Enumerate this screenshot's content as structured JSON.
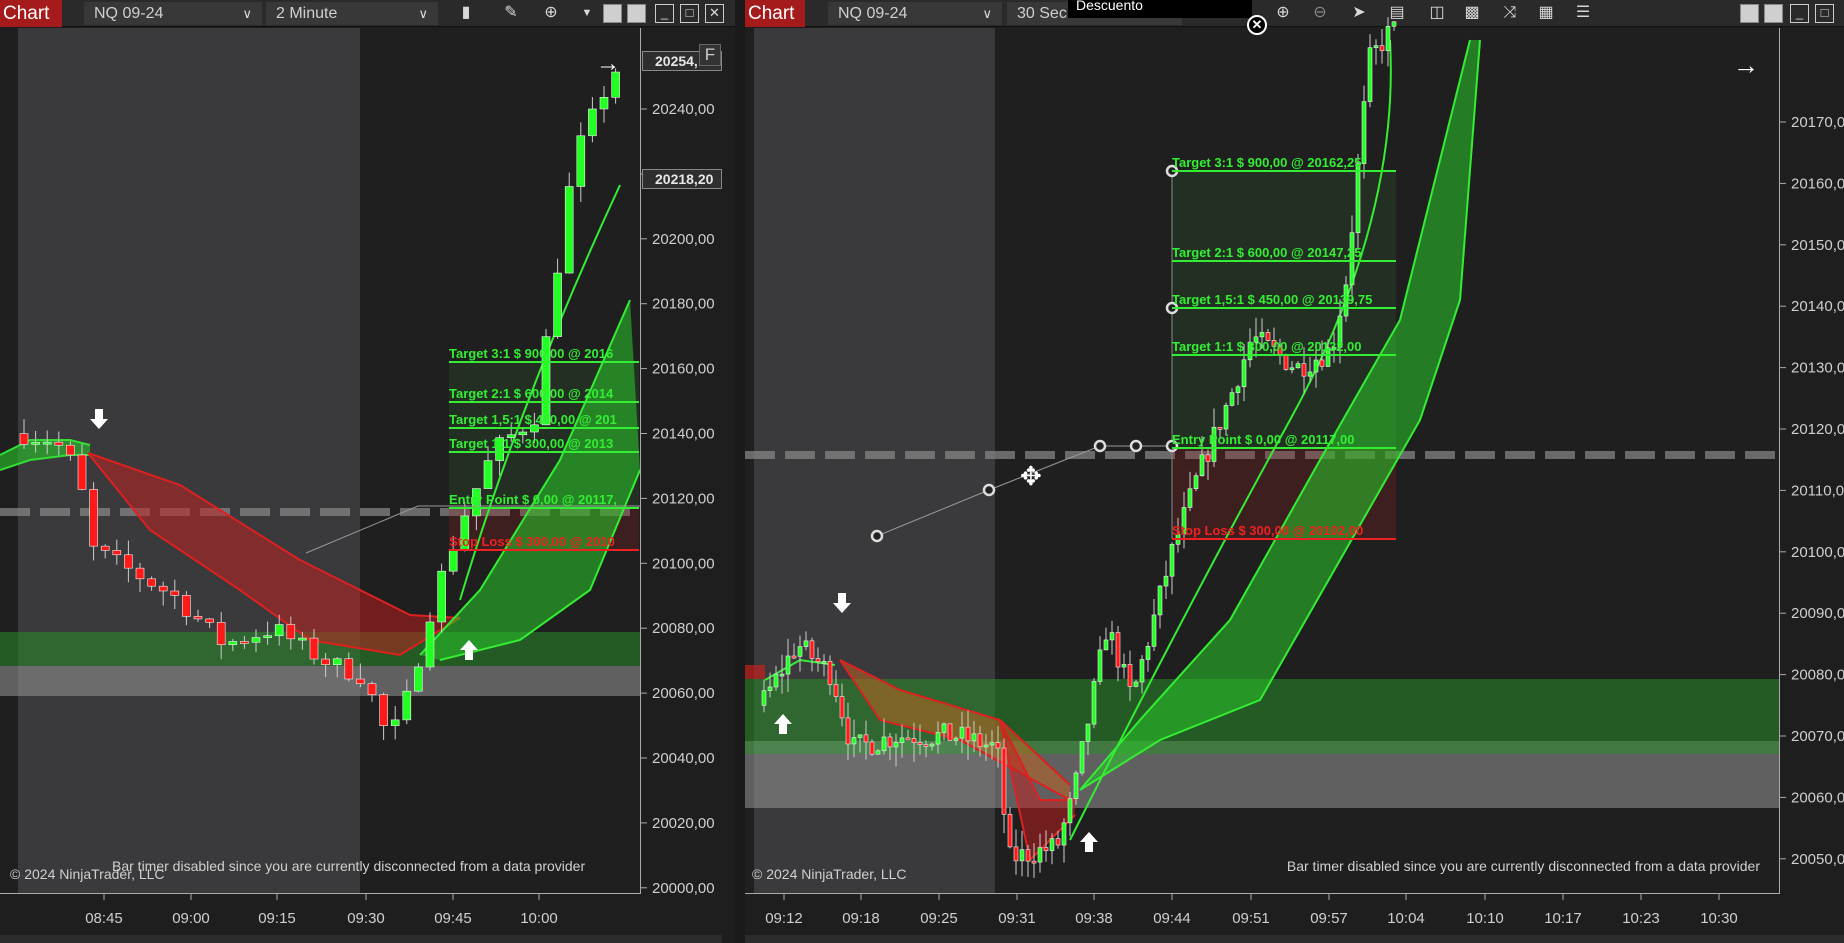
{
  "left_chart": {
    "tab_label": "Chart",
    "instrument": "NQ 09-24",
    "interval": "2 Minute",
    "toolbar_icons": [
      "bars-icon",
      "pencil-icon",
      "zoom-in-icon",
      "dropdown-triangle-icon"
    ],
    "price_ticks": [
      "20240,00",
      "20220,00",
      "20200,00",
      "20180,00",
      "20160,00",
      "20140,00",
      "20120,00",
      "20100,00",
      "20080,00",
      "20060,00",
      "20040,00",
      "20020,00",
      "20000,00"
    ],
    "price_markers": [
      "20254,",
      "20218,20"
    ],
    "f_button": "F",
    "time_ticks": [
      "08:45",
      "09:00",
      "09:15",
      "09:30",
      "09:45",
      "10:00"
    ],
    "trade_levels": [
      {
        "label": "Target 3:1 $ 900,00 @ 2016",
        "color": "#33ee33"
      },
      {
        "label": "Target 2:1 $ 600,00 @ 2014",
        "color": "#33ee33"
      },
      {
        "label": "Target 1,5:1 $ 450,00 @ 201",
        "color": "#33ee33"
      },
      {
        "label": "Target 1:1 $ 300,00 @ 2013",
        "color": "#33ee33"
      },
      {
        "label": "Entry Point $ 0,00 @ 20117,",
        "color": "#33ee33"
      },
      {
        "label": "Stop Loss $ 300,00 @ 2010",
        "color": "#ee2222"
      }
    ],
    "copyright": "© 2024 NinjaTrader, LLC",
    "bar_timer": "Bar timer disabled since you are currently disconnected from a data provider"
  },
  "right_chart": {
    "tab_label": "Chart",
    "instrument": "NQ 09-24",
    "interval": "30 Sec",
    "tooltip": "Descuento",
    "toolbar_icons": [
      "zoom-in-icon",
      "zoom-out-icon",
      "pointer-icon",
      "data-box-icon",
      "properties-icon",
      "indicators-icon",
      "strategies-icon",
      "templates-icon",
      "list-icon"
    ],
    "price_ticks": [
      "20170,00",
      "20160,00",
      "20150,00",
      "20140,00",
      "20130,00",
      "20120,00",
      "20110,00",
      "20100,00",
      "20090,00",
      "20080,00",
      "20070,00",
      "20060,00",
      "20050,00"
    ],
    "time_ticks": [
      "09:12",
      "09:18",
      "09:25",
      "09:31",
      "09:38",
      "09:44",
      "09:51",
      "09:57",
      "10:04",
      "10:10",
      "10:17",
      "10:23",
      "10:30"
    ],
    "trade_levels": [
      {
        "label": "Target 3:1 $ 900,00 @ 20162,25",
        "color": "#33ee33"
      },
      {
        "label": "Target 2:1 $ 600,00 @ 20147,25",
        "color": "#33ee33"
      },
      {
        "label": "Target 1,5:1 $ 450,00 @ 20139,75",
        "color": "#33ee33"
      },
      {
        "label": "Target 1:1 $ 300,00 @ 20132,00",
        "color": "#33ee33"
      },
      {
        "label": "Entry Point $ 0,00 @ 20117,00",
        "color": "#33ee33"
      },
      {
        "label": "Stop Loss $ 300,00 @ 20102,00",
        "color": "#ee2222"
      }
    ],
    "copyright": "© 2024 NinjaTrader, LLC",
    "bar_timer": "Bar timer disabled since you are currently disconnected from a data provider"
  },
  "colors": {
    "up_candle": "#22ff22",
    "down_candle": "#ff1a1a",
    "chart_tab": "#a51b1b",
    "background": "#1e1e1e"
  }
}
